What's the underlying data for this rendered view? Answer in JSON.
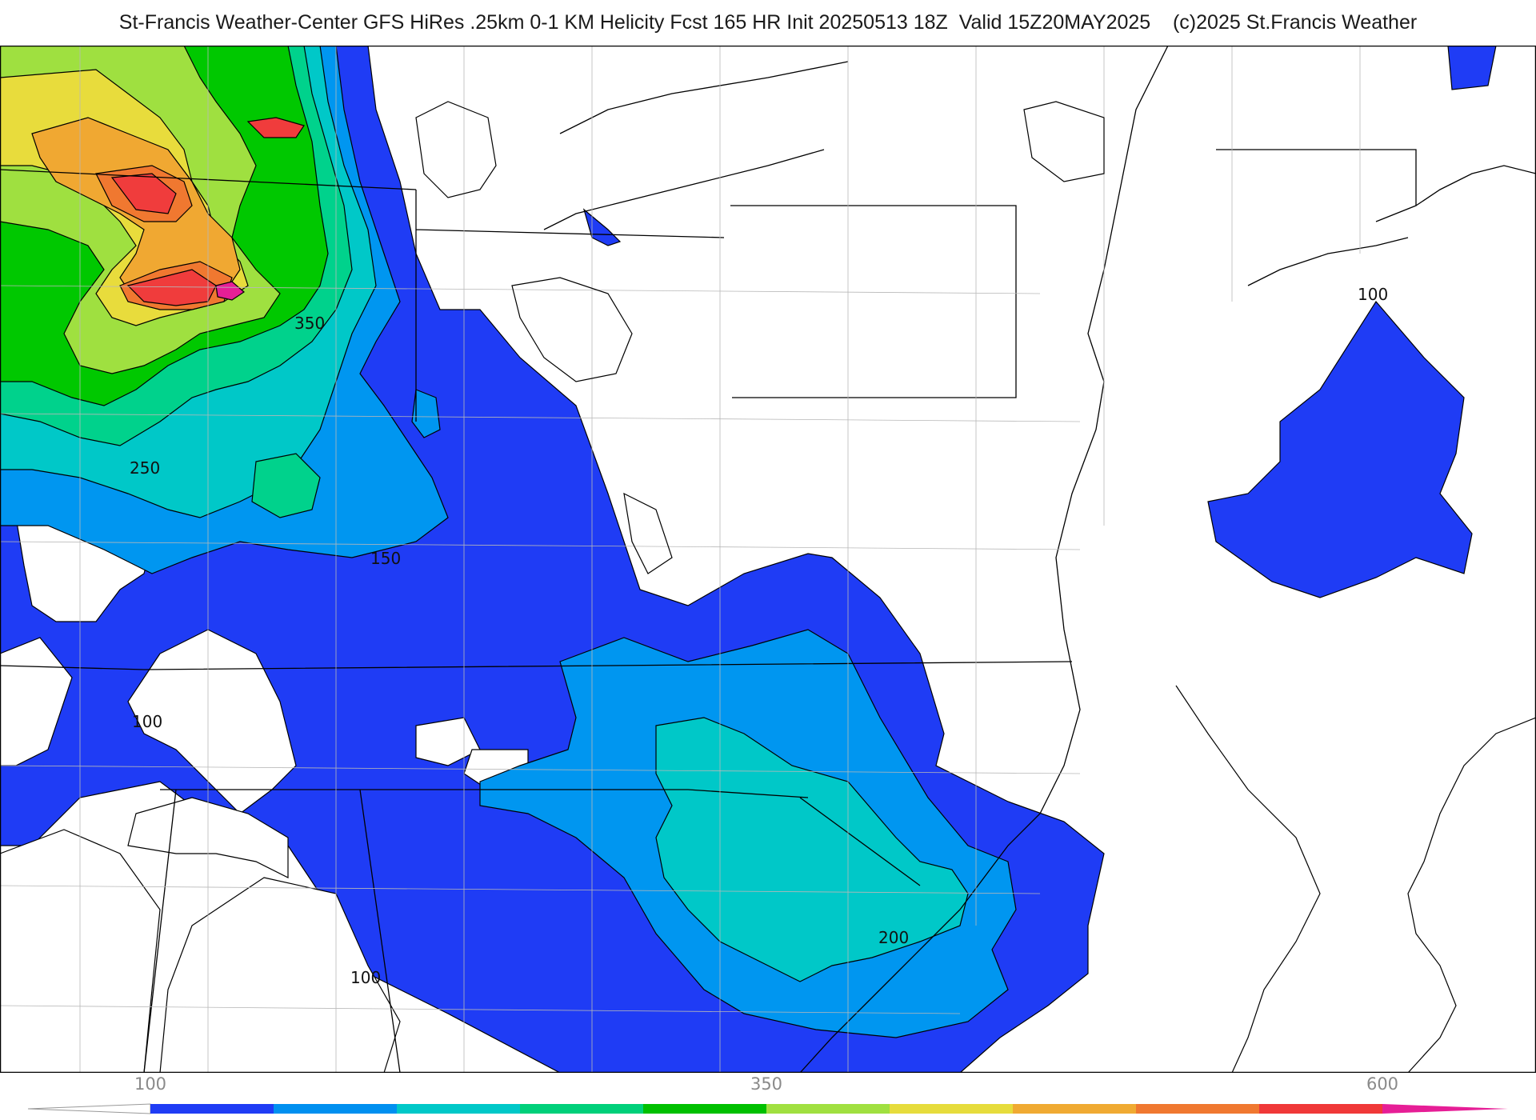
{
  "header": {
    "title": "St-Francis Weather-Center GFS HiRes .25km 0-1 KM Helicity Fcst 165 HR Init 20250513 18Z  Valid 15Z20MAY2025    (c)2025 St.Francis Weather"
  },
  "contour_labels": [
    "350",
    "250",
    "150",
    "100",
    "100",
    "100",
    "200"
  ],
  "colorbar": {
    "ticks": [
      "100",
      "350",
      "600"
    ],
    "colors": [
      "#1f3cf5",
      "#0090f0",
      "#00c8c8",
      "#00d07a",
      "#00c000",
      "#a0e040",
      "#e6dc3c",
      "#f0aa32",
      "#f07830",
      "#f03838",
      "#e61e96"
    ]
  },
  "palette": {
    "c100": "#1f3cf5",
    "c150": "#0096f0",
    "c200": "#00c8c8",
    "c250": "#00d28c",
    "c300": "#00c800",
    "c350": "#9fe040",
    "c400": "#e8dc3c",
    "c450": "#f0a832",
    "c500": "#f07830",
    "c550": "#f03c3c",
    "c600": "#e61e96"
  }
}
